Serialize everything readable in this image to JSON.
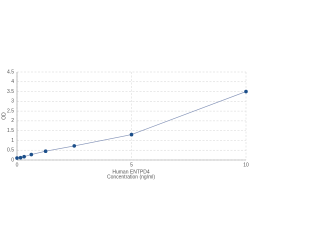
{
  "chart_data": {
    "type": "line",
    "title": "Human ENTPD4",
    "xlabel": "Concentration (ng/ml)",
    "ylabel": "OD",
    "x": [
      0,
      0.156,
      0.312,
      0.625,
      1.25,
      2.5,
      5,
      10
    ],
    "series": [
      {
        "name": "OD",
        "color": "#1c4f8a",
        "line_color": "#7f8fb5",
        "values": [
          0.1,
          0.12,
          0.17,
          0.28,
          0.45,
          0.72,
          1.3,
          3.5
        ]
      }
    ],
    "xlim": [
      0,
      10
    ],
    "xticks": [
      0,
      5,
      10
    ],
    "ylim": [
      0,
      4.5
    ],
    "yticks": [
      0,
      0.5,
      1,
      1.5,
      2,
      2.5,
      3,
      3.5,
      4,
      4.5
    ],
    "grid": true
  }
}
